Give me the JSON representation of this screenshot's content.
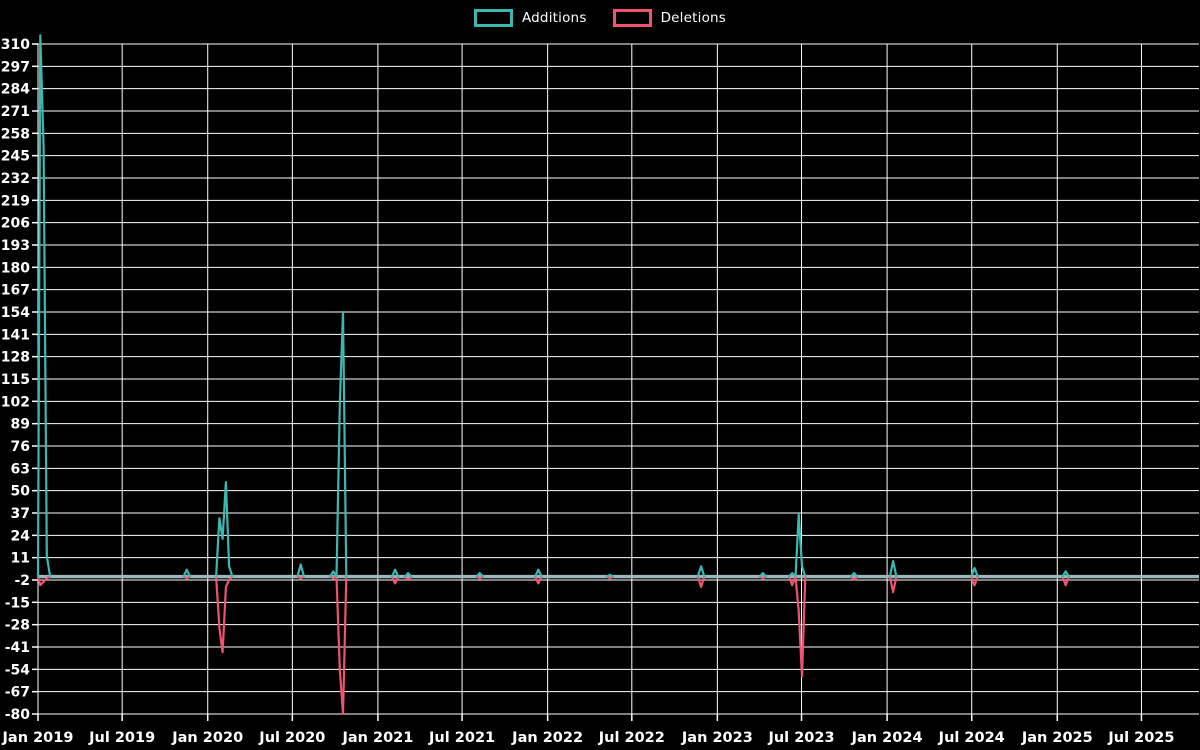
{
  "background_color": "#000000",
  "grid_color": "#ffffff",
  "text_color": "#ffffff",
  "baseline_color": "#9db7bf",
  "legend": {
    "items": [
      {
        "label": "Additions",
        "color": "#3cb8b0"
      },
      {
        "label": "Deletions",
        "color": "#f0536f"
      }
    ]
  },
  "chart_data": {
    "type": "line",
    "title": "",
    "xlabel": "",
    "ylabel": "",
    "grid": true,
    "legend_position": "top-center",
    "x_axis": {
      "tick_labels": [
        "Jan 2019",
        "Jul 2019",
        "Jan 2020",
        "Jul 2020",
        "Jan 2021",
        "Jul 2021",
        "Jan 2022",
        "Jul 2022",
        "Jan 2023",
        "Jul 2023",
        "Jan 2024",
        "Jul 2024",
        "Jan 2025",
        "Jul 2025"
      ],
      "start_date": "2019-01-01",
      "end_date": "2025-11-01"
    },
    "y_axis": {
      "tick_labels": [
        310,
        297,
        284,
        271,
        258,
        245,
        232,
        219,
        206,
        193,
        180,
        167,
        154,
        141,
        128,
        115,
        102,
        89,
        76,
        63,
        50,
        37,
        24,
        11,
        -2,
        -15,
        -28,
        -41,
        -54,
        -67,
        -80
      ],
      "min": -80,
      "max": 315,
      "tick_step": 13
    },
    "series": [
      {
        "name": "Additions",
        "color": "#3cb8b0",
        "points": [
          [
            "2019-01-06",
            315
          ],
          [
            "2019-01-13",
            250
          ],
          [
            "2019-01-20",
            12
          ],
          [
            "2019-11-17",
            4
          ],
          [
            "2020-01-26",
            34
          ],
          [
            "2020-02-02",
            22
          ],
          [
            "2020-02-09",
            55
          ],
          [
            "2020-02-16",
            6
          ],
          [
            "2020-07-19",
            7
          ],
          [
            "2020-09-27",
            3
          ],
          [
            "2020-10-11",
            100
          ],
          [
            "2020-10-18",
            154
          ],
          [
            "2021-02-07",
            4
          ],
          [
            "2021-03-07",
            2
          ],
          [
            "2021-08-08",
            2
          ],
          [
            "2021-12-12",
            4
          ],
          [
            "2022-05-15",
            1
          ],
          [
            "2022-11-27",
            6
          ],
          [
            "2023-04-09",
            2
          ],
          [
            "2023-06-11",
            2
          ],
          [
            "2023-06-25",
            36
          ],
          [
            "2023-07-02",
            6
          ],
          [
            "2023-10-22",
            2
          ],
          [
            "2024-01-14",
            9
          ],
          [
            "2024-07-07",
            5
          ],
          [
            "2025-01-19",
            3
          ]
        ]
      },
      {
        "name": "Deletions",
        "color": "#f0536f",
        "points": [
          [
            "2019-01-06",
            -5
          ],
          [
            "2019-01-13",
            -3
          ],
          [
            "2019-01-20",
            -1
          ],
          [
            "2019-11-17",
            -1
          ],
          [
            "2020-01-26",
            -30
          ],
          [
            "2020-02-02",
            -44
          ],
          [
            "2020-02-09",
            -6
          ],
          [
            "2020-02-16",
            -2
          ],
          [
            "2020-07-19",
            -1
          ],
          [
            "2020-09-27",
            -1
          ],
          [
            "2020-10-11",
            -54
          ],
          [
            "2020-10-18",
            -80
          ],
          [
            "2021-02-07",
            -4
          ],
          [
            "2021-03-07",
            -2
          ],
          [
            "2021-08-08",
            -1
          ],
          [
            "2021-12-12",
            -4
          ],
          [
            "2022-05-15",
            -1
          ],
          [
            "2022-11-27",
            -6
          ],
          [
            "2023-04-09",
            -1
          ],
          [
            "2023-06-11",
            -5
          ],
          [
            "2023-06-25",
            -20
          ],
          [
            "2023-07-02",
            -58
          ],
          [
            "2023-10-22",
            -2
          ],
          [
            "2024-01-14",
            -9
          ],
          [
            "2024-07-07",
            -5
          ],
          [
            "2025-01-19",
            -5
          ]
        ]
      }
    ]
  }
}
